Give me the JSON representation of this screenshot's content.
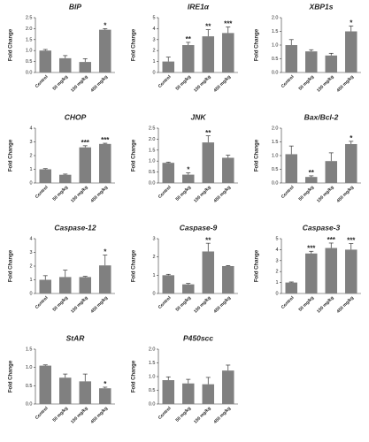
{
  "chart_data": [
    {
      "type": "bar",
      "title": "BIP",
      "y_label": "Fold Change",
      "categories": [
        "Control",
        "50 mg/kg",
        "150 mg/kg",
        "450 mg/kg"
      ],
      "values": [
        1.0,
        0.65,
        0.48,
        1.95
      ],
      "errors": [
        0.05,
        0.12,
        0.15,
        0.05
      ],
      "significance": [
        null,
        null,
        null,
        "*"
      ],
      "color": "#808080",
      "ylim": [
        0,
        2.5
      ],
      "yticks": [
        {
          "value": 0,
          "label": "0.0"
        },
        {
          "value": 0.5,
          "label": "0.5"
        },
        {
          "value": 1,
          "label": "1.0"
        },
        {
          "value": 1.5,
          "label": "1.5"
        },
        {
          "value": 2,
          "label": "2.0"
        },
        {
          "value": 2.5,
          "label": "2.5"
        }
      ]
    },
    {
      "type": "bar",
      "title": "IRE1α",
      "y_label": "Fold Change",
      "categories": [
        "Control",
        "50 mg/kg",
        "150 mg/kg",
        "450 mg/kg"
      ],
      "values": [
        1.0,
        2.5,
        3.3,
        3.6
      ],
      "errors": [
        0.4,
        0.25,
        0.6,
        0.55
      ],
      "significance": [
        null,
        "**",
        "**",
        "***"
      ],
      "color": "#808080",
      "ylim": [
        0,
        5
      ],
      "yticks": [
        0,
        1,
        2,
        3,
        4,
        5
      ]
    },
    {
      "type": "bar",
      "title": "XBP1s",
      "y_label": "Fold Change",
      "categories": [
        "Control",
        "50 mg/kg",
        "150 mg/kg",
        "450 mg/kg"
      ],
      "values": [
        1.0,
        0.77,
        0.62,
        1.5
      ],
      "errors": [
        0.2,
        0.06,
        0.08,
        0.2
      ],
      "significance": [
        null,
        null,
        null,
        "*"
      ],
      "color": "#808080",
      "ylim": [
        0,
        2
      ],
      "yticks": [
        {
          "value": 0,
          "label": "0.0"
        },
        {
          "value": 0.5,
          "label": "0.5"
        },
        {
          "value": 1,
          "label": "1.0"
        },
        {
          "value": 1.5,
          "label": "1.5"
        },
        {
          "value": 2,
          "label": "2.0"
        }
      ]
    },
    {
      "type": "bar",
      "title": "CHOP",
      "y_label": "Fold Change",
      "categories": [
        "Control",
        "50 mg/kg",
        "150 mg/kg",
        "450 mg/kg"
      ],
      "values": [
        1.0,
        0.6,
        2.6,
        2.85
      ],
      "errors": [
        0.05,
        0.05,
        0.12,
        0.05
      ],
      "significance": [
        null,
        null,
        "***",
        "***"
      ],
      "color": "#808080",
      "ylim": [
        0,
        4
      ],
      "yticks": [
        0,
        1,
        2,
        3,
        4
      ]
    },
    {
      "type": "bar",
      "title": "JNK",
      "y_label": "Fold Change",
      "categories": [
        "Control",
        "50 mg/kg",
        "150 mg/kg",
        "450 mg/kg"
      ],
      "values": [
        0.92,
        0.38,
        1.85,
        1.15
      ],
      "errors": [
        0.03,
        0.08,
        0.3,
        0.12
      ],
      "significance": [
        null,
        "*",
        "**",
        null
      ],
      "color": "#808080",
      "ylim": [
        0,
        2.5
      ],
      "yticks": [
        {
          "value": 0,
          "label": "0.0"
        },
        {
          "value": 0.5,
          "label": "0.5"
        },
        {
          "value": 1,
          "label": "1.0"
        },
        {
          "value": 1.5,
          "label": "1.5"
        },
        {
          "value": 2,
          "label": "2.0"
        },
        {
          "value": 2.5,
          "label": "2.5"
        }
      ]
    },
    {
      "type": "bar",
      "title": "Bax/Bcl-2",
      "y_label": "Fold Change",
      "categories": [
        "Control",
        "50 mg/kg",
        "150 mg/kg",
        "450 mg/kg"
      ],
      "values": [
        1.05,
        0.22,
        0.8,
        1.42
      ],
      "errors": [
        0.3,
        0.04,
        0.3,
        0.1
      ],
      "significance": [
        null,
        "**",
        null,
        "*"
      ],
      "color": "#808080",
      "ylim": [
        0,
        2
      ],
      "yticks": [
        {
          "value": 0,
          "label": "0.0"
        },
        {
          "value": 0.5,
          "label": "0.5"
        },
        {
          "value": 1,
          "label": "1.0"
        },
        {
          "value": 1.5,
          "label": "1.5"
        },
        {
          "value": 2,
          "label": "2.0"
        }
      ]
    },
    {
      "type": "bar",
      "title": "Caspase-12",
      "y_label": "Fold Change",
      "categories": [
        "Control",
        "50 mg/kg",
        "150 mg/kg",
        "450 mg/kg"
      ],
      "values": [
        1.0,
        1.2,
        1.2,
        2.05
      ],
      "errors": [
        0.3,
        0.5,
        0.05,
        0.75
      ],
      "significance": [
        null,
        null,
        null,
        "*"
      ],
      "color": "#808080",
      "ylim": [
        0,
        4
      ],
      "yticks": [
        0,
        1,
        2,
        3,
        4
      ]
    },
    {
      "type": "bar",
      "title": "Caspase-9",
      "y_label": "Fold Change",
      "categories": [
        "Control",
        "50 mg/kg",
        "150 mg/kg",
        "450 mg/kg"
      ],
      "values": [
        1.0,
        0.5,
        2.3,
        1.5
      ],
      "errors": [
        0.05,
        0.05,
        0.45,
        0.03
      ],
      "significance": [
        null,
        null,
        "**",
        null
      ],
      "color": "#808080",
      "ylim": [
        0,
        3
      ],
      "yticks": [
        0,
        1,
        2,
        3
      ]
    },
    {
      "type": "bar",
      "title": "Caspase-3",
      "y_label": "Fold Change",
      "categories": [
        "Control",
        "50 mg/kg",
        "150 mg/kg",
        "450 mg/kg"
      ],
      "values": [
        1.0,
        3.65,
        4.15,
        4.0
      ],
      "errors": [
        0.05,
        0.2,
        0.45,
        0.55
      ],
      "significance": [
        null,
        "***",
        "***",
        "***"
      ],
      "color": "#808080",
      "ylim": [
        0,
        5
      ],
      "yticks": [
        0,
        1,
        2,
        3,
        4,
        5
      ]
    },
    {
      "type": "bar",
      "title": "StAR",
      "y_label": "Fold Change",
      "categories": [
        "Control",
        "50 mg/kg",
        "150 mg/kg",
        "450 mg/kg"
      ],
      "values": [
        1.05,
        0.72,
        0.62,
        0.43
      ],
      "errors": [
        0.02,
        0.1,
        0.2,
        0.03
      ],
      "significance": [
        null,
        null,
        null,
        "*"
      ],
      "color": "#808080",
      "ylim": [
        0,
        1.5
      ],
      "yticks": [
        {
          "value": 0,
          "label": "0.0"
        },
        {
          "value": 0.5,
          "label": "0.5"
        },
        {
          "value": 1,
          "label": "1.0"
        },
        {
          "value": 1.5,
          "label": "1.5"
        }
      ]
    },
    {
      "type": "bar",
      "title": "P450scc",
      "y_label": "Fold Change",
      "categories": [
        "Control",
        "50 mg/kg",
        "150 mg/kg",
        "450 mg/kg"
      ],
      "values": [
        0.87,
        0.75,
        0.72,
        1.22
      ],
      "errors": [
        0.12,
        0.15,
        0.25,
        0.2
      ],
      "significance": [
        null,
        null,
        null,
        null
      ],
      "color": "#808080",
      "ylim": [
        0,
        2
      ],
      "yticks": [
        {
          "value": 0,
          "label": "0.0"
        },
        {
          "value": 0.5,
          "label": "0.5"
        },
        {
          "value": 1,
          "label": "1.0"
        },
        {
          "value": 1.5,
          "label": "1.5"
        },
        {
          "value": 2,
          "label": "2.0"
        }
      ]
    }
  ]
}
